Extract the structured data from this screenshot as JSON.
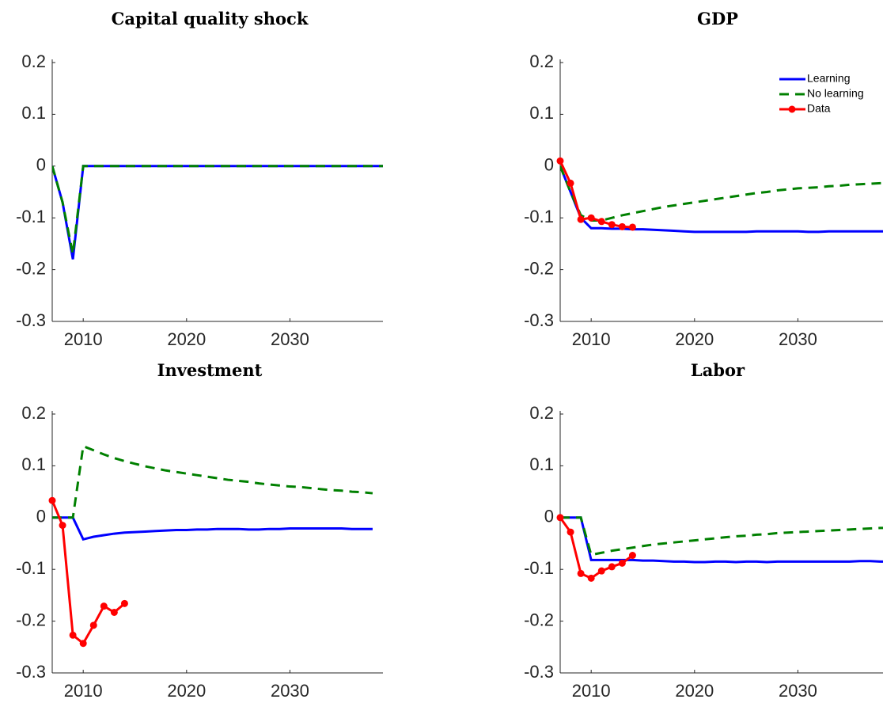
{
  "chart_data": [
    {
      "type": "line",
      "title": "Capital quality shock",
      "x": [
        2007,
        2008,
        2009,
        2010,
        2011,
        2012,
        2013,
        2014,
        2015,
        2016,
        2017,
        2018,
        2019,
        2020,
        2021,
        2022,
        2023,
        2024,
        2025,
        2026,
        2027,
        2028,
        2029,
        2030,
        2031,
        2032,
        2033,
        2034,
        2035,
        2036,
        2037,
        2038,
        2039
      ],
      "xlim": [
        2007,
        2039
      ],
      "xticks": [
        2010,
        2020,
        2030
      ],
      "ylim": [
        -0.3,
        0.2
      ],
      "yticks": [
        -0.3,
        -0.2,
        -0.1,
        0,
        0.1,
        0.2
      ],
      "series": [
        {
          "color": "#0000ff",
          "values": [
            0,
            -0.07,
            -0.18,
            0,
            0,
            0,
            0,
            0,
            0,
            0,
            0,
            0,
            0,
            0,
            0,
            0,
            0,
            0,
            0,
            0,
            0,
            0,
            0,
            0,
            0,
            0,
            0,
            0,
            0,
            0,
            0,
            0,
            0
          ]
        },
        {
          "color": "#008000",
          "dash": true,
          "values": [
            0,
            -0.07,
            -0.17,
            0,
            0,
            0,
            0,
            0,
            0,
            0,
            0,
            0,
            0,
            0,
            0,
            0,
            0,
            0,
            0,
            0,
            0,
            0,
            0,
            0,
            0,
            0,
            0,
            0,
            0,
            0,
            0,
            0,
            0
          ]
        }
      ]
    },
    {
      "type": "line",
      "title": "GDP",
      "legend": "upper right",
      "x": [
        2007,
        2008,
        2009,
        2010,
        2011,
        2012,
        2013,
        2014,
        2015,
        2016,
        2017,
        2018,
        2019,
        2020,
        2021,
        2022,
        2023,
        2024,
        2025,
        2026,
        2027,
        2028,
        2029,
        2030,
        2031,
        2032,
        2033,
        2034,
        2035,
        2036,
        2037,
        2038,
        2039
      ],
      "xlim": [
        2007,
        2039
      ],
      "xticks": [
        2010,
        2020,
        2030
      ],
      "ylim": [
        -0.3,
        0.2
      ],
      "yticks": [
        -0.3,
        -0.2,
        -0.1,
        0,
        0.1,
        0.2
      ],
      "series": [
        {
          "name": "Learning",
          "color": "#0000ff",
          "values": [
            0,
            -0.05,
            -0.1,
            -0.12,
            -0.12,
            -0.121,
            -0.121,
            -0.122,
            -0.122,
            -0.123,
            -0.124,
            -0.125,
            -0.126,
            -0.127,
            -0.127,
            -0.127,
            -0.127,
            -0.127,
            -0.127,
            -0.126,
            -0.126,
            -0.126,
            -0.126,
            -0.126,
            -0.127,
            -0.127,
            -0.126,
            -0.126,
            -0.126,
            -0.126,
            -0.126,
            -0.126,
            -0.126
          ]
        },
        {
          "name": "No learning",
          "color": "#008000",
          "dash": true,
          "values": [
            0,
            -0.05,
            -0.095,
            -0.105,
            -0.105,
            -0.1,
            -0.095,
            -0.091,
            -0.087,
            -0.083,
            -0.079,
            -0.076,
            -0.073,
            -0.07,
            -0.067,
            -0.064,
            -0.061,
            -0.058,
            -0.055,
            -0.052,
            -0.05,
            -0.047,
            -0.045,
            -0.043,
            -0.042,
            -0.041,
            -0.039,
            -0.038,
            -0.036,
            -0.035,
            -0.034,
            -0.033,
            -0.032
          ]
        },
        {
          "name": "Data",
          "color": "#ff0000",
          "marker": "o",
          "values": [
            0.01,
            -0.033,
            -0.103,
            -0.1,
            -0.107,
            -0.113,
            -0.117,
            -0.118,
            null,
            null,
            null,
            null,
            null,
            null,
            null,
            null,
            null,
            null,
            null,
            null,
            null,
            null,
            null,
            null,
            null,
            null,
            null,
            null,
            null,
            null,
            null,
            null,
            null
          ]
        }
      ]
    },
    {
      "type": "line",
      "title": "Investment",
      "x": [
        2007,
        2008,
        2009,
        2010,
        2011,
        2012,
        2013,
        2014,
        2015,
        2016,
        2017,
        2018,
        2019,
        2020,
        2021,
        2022,
        2023,
        2024,
        2025,
        2026,
        2027,
        2028,
        2029,
        2030,
        2031,
        2032,
        2033,
        2034,
        2035,
        2036,
        2037,
        2038,
        2039
      ],
      "xlim": [
        2007,
        2039
      ],
      "xticks": [
        2010,
        2020,
        2030
      ],
      "ylim": [
        -0.3,
        0.2
      ],
      "yticks": [
        -0.3,
        -0.2,
        -0.1,
        0,
        0.1,
        0.2
      ],
      "series": [
        {
          "color": "#0000ff",
          "values": [
            0,
            0,
            0,
            -0.042,
            -0.037,
            -0.034,
            -0.031,
            -0.029,
            -0.028,
            -0.027,
            -0.026,
            -0.025,
            -0.024,
            -0.024,
            -0.023,
            -0.023,
            -0.022,
            -0.022,
            -0.022,
            -0.023,
            -0.023,
            -0.022,
            -0.022,
            -0.021,
            -0.021,
            -0.021,
            -0.021,
            -0.021,
            -0.021,
            -0.022,
            -0.022,
            -0.022,
            null
          ]
        },
        {
          "color": "#008000",
          "dash": true,
          "values": [
            0,
            0,
            0,
            0.138,
            0.13,
            0.122,
            0.115,
            0.109,
            0.104,
            0.099,
            0.095,
            0.091,
            0.088,
            0.085,
            0.082,
            0.079,
            0.076,
            0.073,
            0.071,
            0.069,
            0.066,
            0.064,
            0.062,
            0.06,
            0.059,
            0.057,
            0.055,
            0.053,
            0.052,
            0.05,
            0.049,
            0.047,
            null
          ]
        },
        {
          "color": "#ff0000",
          "marker": "o",
          "values": [
            0.033,
            -0.015,
            -0.227,
            -0.243,
            -0.208,
            -0.171,
            -0.183,
            -0.166,
            null,
            null,
            null,
            null,
            null,
            null,
            null,
            null,
            null,
            null,
            null,
            null,
            null,
            null,
            null,
            null,
            null,
            null,
            null,
            null,
            null,
            null,
            null,
            null,
            null
          ]
        }
      ]
    },
    {
      "type": "line",
      "title": "Labor",
      "x": [
        2007,
        2008,
        2009,
        2010,
        2011,
        2012,
        2013,
        2014,
        2015,
        2016,
        2017,
        2018,
        2019,
        2020,
        2021,
        2022,
        2023,
        2024,
        2025,
        2026,
        2027,
        2028,
        2029,
        2030,
        2031,
        2032,
        2033,
        2034,
        2035,
        2036,
        2037,
        2038,
        2039
      ],
      "xlim": [
        2007,
        2039
      ],
      "xticks": [
        2010,
        2020,
        2030
      ],
      "ylim": [
        -0.3,
        0.2
      ],
      "yticks": [
        -0.3,
        -0.2,
        -0.1,
        0,
        0.1,
        0.2
      ],
      "series": [
        {
          "color": "#0000ff",
          "values": [
            0,
            0,
            0,
            -0.082,
            -0.082,
            -0.082,
            -0.082,
            -0.082,
            -0.083,
            -0.083,
            -0.084,
            -0.085,
            -0.085,
            -0.086,
            -0.086,
            -0.085,
            -0.085,
            -0.086,
            -0.085,
            -0.085,
            -0.086,
            -0.085,
            -0.085,
            -0.085,
            -0.085,
            -0.085,
            -0.085,
            -0.085,
            -0.085,
            -0.084,
            -0.084,
            -0.085,
            -0.085
          ]
        },
        {
          "color": "#008000",
          "dash": true,
          "values": [
            0,
            0,
            0,
            -0.072,
            -0.068,
            -0.064,
            -0.061,
            -0.058,
            -0.055,
            -0.052,
            -0.05,
            -0.048,
            -0.046,
            -0.044,
            -0.042,
            -0.04,
            -0.038,
            -0.036,
            -0.035,
            -0.033,
            -0.032,
            -0.03,
            -0.029,
            -0.028,
            -0.027,
            -0.026,
            -0.025,
            -0.024,
            -0.023,
            -0.022,
            -0.021,
            -0.02,
            -0.02
          ]
        },
        {
          "color": "#ff0000",
          "marker": "o",
          "values": [
            0,
            -0.028,
            -0.108,
            -0.117,
            -0.103,
            -0.095,
            -0.088,
            -0.073,
            null,
            null,
            null,
            null,
            null,
            null,
            null,
            null,
            null,
            null,
            null,
            null,
            null,
            null,
            null,
            null,
            null,
            null,
            null,
            null,
            null,
            null,
            null,
            null,
            null
          ]
        }
      ]
    }
  ]
}
